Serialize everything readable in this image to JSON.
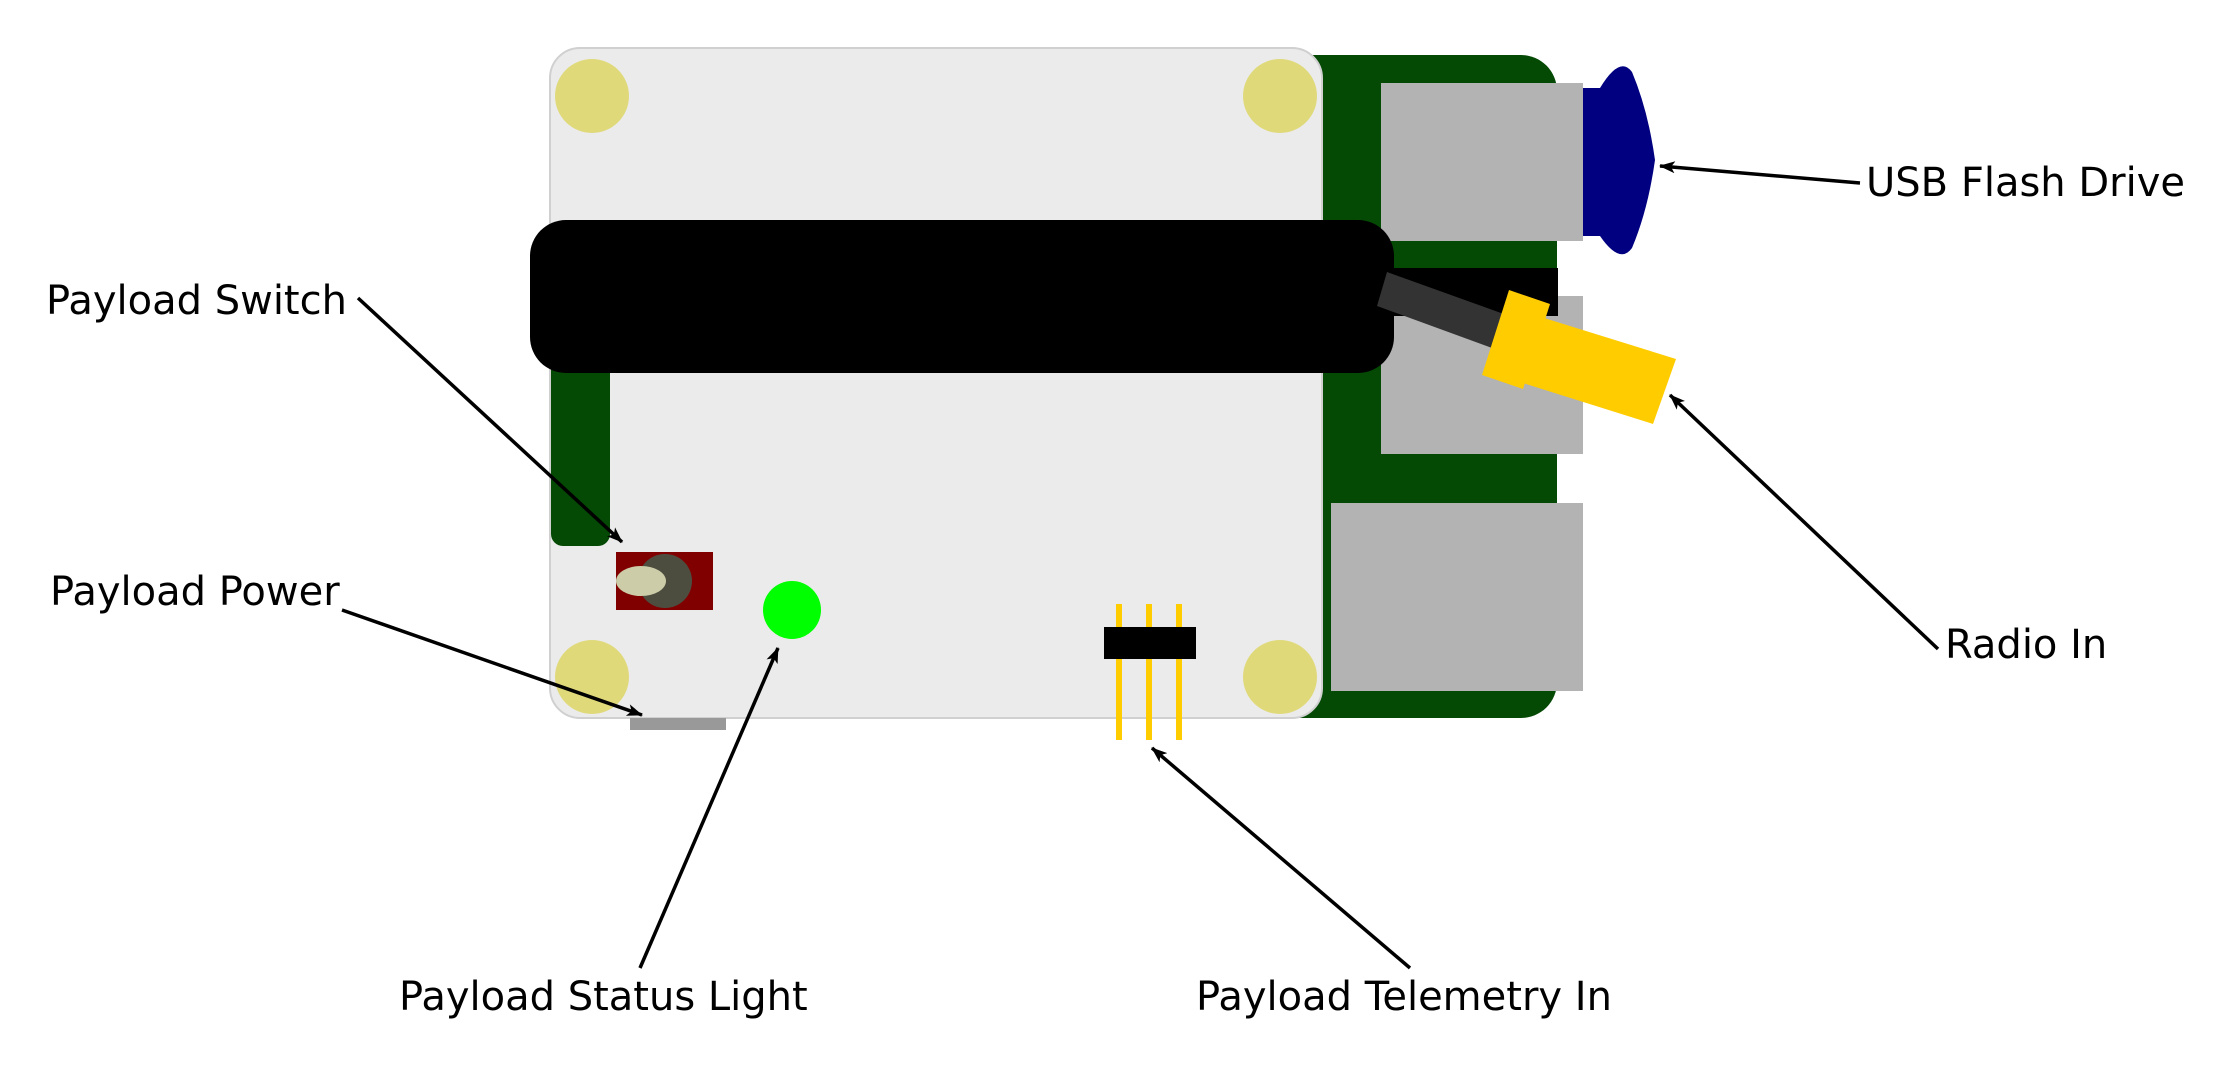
{
  "labels": {
    "usb_flash_drive": "USB Flash Drive",
    "payload_switch": "Payload Switch",
    "payload_power": "Payload Power",
    "radio_in": "Radio In",
    "payload_status_light": "Payload Status Light",
    "payload_telemetry_in": "Payload Telemetry In"
  },
  "colors": {
    "pcb_green": "#044904",
    "hat_board": "#ebebeb",
    "mount_hole": "#e0d97a",
    "port_grey": "#b3b3b3",
    "usb_drive_blue": "#000080",
    "cable_black": "#000000",
    "cable_jacket": "#333333",
    "connector_yellow": "#ffcc00",
    "switch_red": "#800000",
    "switch_knob": "#4d4d3f",
    "switch_lever": "#cccca8",
    "status_led_green": "#00ff00",
    "power_strip_grey": "#999999",
    "header_pin_yellow": "#ffcc00",
    "header_body_black": "#000000"
  }
}
